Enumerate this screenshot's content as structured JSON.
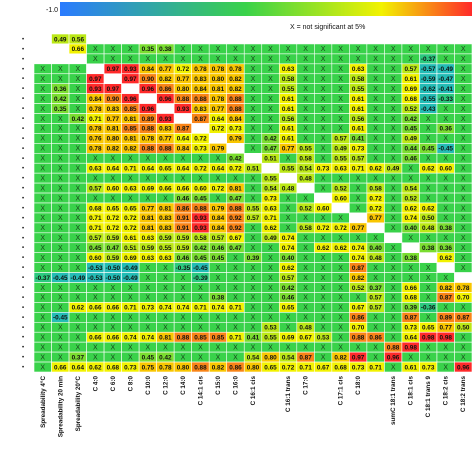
{
  "chart_data": {
    "type": "heatmap",
    "title": "",
    "color_scale": {
      "min_label": "-1.0",
      "colors": [
        "#2a7bff",
        "#39d24a",
        "#f2f200",
        "#ff2a2a"
      ]
    },
    "legend_note": "X = not significant at 5%",
    "x_tick_labels": [
      "Spreadability 4°C",
      "Spreadability 20 min",
      "Spreadability 20°C",
      "C 4 0",
      "C 6 0",
      "C 8 0",
      "C 10 0",
      "C 12 0",
      "C 14 0",
      "C 14 1 cis",
      "C 15 0",
      "C 16 0",
      "C 16 1 cis",
      "C 16 1 trans",
      "C 17 0",
      "C 17 1 cis",
      "C 18 0",
      "C 18 1 cis",
      "C 18 1 trans",
      "C 18 2 cis",
      "C 18 2 trans",
      "C 18 3",
      "C 20 0",
      "sum",
      "C 18 2 trans"
    ],
    "x_labels": [
      "Spreadability 4°C",
      "Spreadability 20 min",
      "Spreadability 20°C",
      "C 4:0",
      "C 6:0",
      "C 8:0",
      "C 10:0",
      "C 12:0",
      "C 14:0",
      "C 14:1 cis",
      "C 15:0",
      "C 16:0",
      "C 16:1 cis",
      "",
      "C 16:1 trans",
      "C 17:0",
      "",
      "C 17:1 cis",
      "C 18:0",
      "",
      "sumC 18:1 trans",
      "C 18:1 cis",
      "C 18:1 trans 9",
      "C 18:2 cis",
      "C 18:2 trans"
    ],
    "matrix": [
      [
        "",
        "0.49",
        "0.56",
        "",
        "",
        "",
        "",
        "",
        "",
        "",
        "",
        "",
        "",
        "",
        "",
        "",
        "",
        "",
        "",
        "",
        "",
        "",
        "",
        "",
        ""
      ],
      [
        "",
        "",
        "0.66",
        "X",
        "X",
        "X",
        "0.35",
        "0.38",
        "X",
        "X",
        "X",
        "X",
        "X",
        "X",
        "X",
        "X",
        "X",
        "X",
        "X",
        "X",
        "X",
        "X",
        "X",
        "X",
        "X"
      ],
      [
        "",
        "",
        "",
        "X",
        "X",
        "X",
        "X",
        "X",
        "X",
        "X",
        "X",
        "X",
        "X",
        "X",
        "X",
        "X",
        "X",
        "X",
        "X",
        "X",
        "X",
        "X",
        "-0.37",
        "X",
        "X"
      ],
      [
        "X",
        "X",
        "X",
        "",
        "0.97",
        "0.93",
        "0.84",
        "0.77",
        "0.72",
        "0.78",
        "0.78",
        "0.78",
        "X",
        "X",
        "0.63",
        "X",
        "X",
        "X",
        "0.63",
        "X",
        "X",
        "0.57",
        "-0.57",
        "-0.49",
        "X"
      ],
      [
        "X",
        "X",
        "X",
        "0.97",
        "",
        "0.97",
        "0.90",
        "0.82",
        "0.77",
        "0.83",
        "0.80",
        "0.82",
        "X",
        "X",
        "0.58",
        "X",
        "X",
        "X",
        "0.58",
        "X",
        "X",
        "0.61",
        "-0.59",
        "-0.47",
        "X"
      ],
      [
        "X",
        "0.36",
        "X",
        "0.93",
        "0.97",
        "",
        "0.96",
        "0.86",
        "0.80",
        "0.84",
        "0.81",
        "0.82",
        "X",
        "X",
        "0.55",
        "X",
        "X",
        "X",
        "0.55",
        "X",
        "X",
        "0.69",
        "-0.62",
        "-0.41",
        "X"
      ],
      [
        "X",
        "0.42",
        "X",
        "0.84",
        "0.90",
        "0.96",
        "",
        "0.96",
        "0.88",
        "0.88",
        "0.78",
        "0.88",
        "X",
        "X",
        "0.61",
        "X",
        "X",
        "X",
        "0.61",
        "X",
        "X",
        "0.68",
        "-0.55",
        "-0.33",
        "X"
      ],
      [
        "X",
        "0.35",
        "X",
        "0.78",
        "0.83",
        "0.85",
        "0.96",
        "",
        "0.93",
        "0.83",
        "0.77",
        "0.88",
        "X",
        "X",
        "0.61",
        "X",
        "X",
        "X",
        "0.61",
        "X",
        "X",
        "0.52",
        "-0.43",
        "X",
        "X"
      ],
      [
        "X",
        "X",
        "0.42",
        "0.71",
        "0.77",
        "0.81",
        "0.89",
        "0.93",
        "",
        "0.87",
        "0.64",
        "0.84",
        "X",
        "X",
        "0.56",
        "X",
        "X",
        "X",
        "0.56",
        "X",
        "X",
        "0.42",
        "X",
        "X",
        "X"
      ],
      [
        "X",
        "X",
        "X",
        "0.78",
        "0.81",
        "0.85",
        "0.88",
        "0.83",
        "0.87",
        "",
        "0.72",
        "0.73",
        "X",
        "X",
        "0.61",
        "X",
        "X",
        "X",
        "0.61",
        "X",
        "X",
        "0.45",
        "X",
        "0.36",
        "X"
      ],
      [
        "X",
        "X",
        "X",
        "0.76",
        "0.80",
        "0.81",
        "0.78",
        "0.77",
        "0.64",
        "0.72",
        "",
        "0.79",
        "X",
        "0.42",
        "0.61",
        "X",
        "X",
        "0.57",
        "0.41",
        "X",
        "X",
        "0.49",
        "X",
        "X",
        "X"
      ],
      [
        "X",
        "X",
        "X",
        "0.78",
        "0.82",
        "0.82",
        "0.88",
        "0.88",
        "0.84",
        "0.73",
        "0.79",
        "",
        "X",
        "0.47",
        "0.77",
        "0.55",
        "X",
        "0.49",
        "0.73",
        "X",
        "X",
        "0.44",
        "0.45",
        "-0.45",
        "X"
      ],
      [
        "X",
        "X",
        "X",
        "X",
        "X",
        "X",
        "X",
        "X",
        "X",
        "X",
        "X",
        "0.42",
        "",
        "0.51",
        "X",
        "0.58",
        "X",
        "0.55",
        "0.57",
        "X",
        "X",
        "0.46",
        "X",
        "X",
        "X"
      ],
      [
        "X",
        "X",
        "X",
        "0.63",
        "0.64",
        "0.71",
        "0.64",
        "0.65",
        "0.64",
        "0.72",
        "0.64",
        "0.72",
        "0.51",
        "",
        "0.55",
        "0.54",
        "0.73",
        "0.63",
        "0.71",
        "0.62",
        "0.49",
        "X",
        "0.62",
        "0.60",
        "X"
      ],
      [
        "X",
        "X",
        "X",
        "X",
        "X",
        "X",
        "X",
        "X",
        "X",
        "X",
        "X",
        "X",
        "X",
        "0.55",
        "",
        "0.48",
        "X",
        "X",
        "X",
        "X",
        "X",
        "X",
        "X",
        "X",
        "X"
      ],
      [
        "X",
        "X",
        "X",
        "0.57",
        "0.60",
        "0.63",
        "0.69",
        "0.66",
        "0.66",
        "0.60",
        "0.72",
        "0.81",
        "X",
        "0.54",
        "0.48",
        "",
        "X",
        "0.52",
        "X",
        "0.58",
        "X",
        "0.54",
        "X",
        "X",
        "X"
      ],
      [
        "X",
        "X",
        "X",
        "X",
        "X",
        "X",
        "X",
        "X",
        "0.46",
        "0.45",
        "X",
        "0.47",
        "X",
        "0.73",
        "X",
        "X",
        "",
        "0.60",
        "X",
        "0.72",
        "X",
        "0.52",
        "X",
        "X",
        "X"
      ],
      [
        "X",
        "X",
        "X",
        "0.68",
        "0.65",
        "0.65",
        "0.77",
        "0.81",
        "0.86",
        "0.88",
        "0.79",
        "0.88",
        "0.55",
        "0.63",
        "X",
        "0.52",
        "0.60",
        "",
        "X",
        "0.72",
        "X",
        "0.62",
        "0.62",
        "X",
        "X"
      ],
      [
        "X",
        "X",
        "X",
        "0.71",
        "0.72",
        "0.72",
        "0.81",
        "0.83",
        "0.91",
        "0.93",
        "0.84",
        "0.92",
        "0.57",
        "0.71",
        "X",
        "X",
        "X",
        "X",
        "",
        "0.77",
        "X",
        "0.74",
        "0.50",
        "X",
        "X"
      ],
      [
        "X",
        "X",
        "X",
        "0.71",
        "0.72",
        "0.72",
        "0.81",
        "0.83",
        "0.91",
        "0.93",
        "0.84",
        "0.92",
        "X",
        "0.62",
        "X",
        "0.58",
        "0.72",
        "0.72",
        "0.77",
        "",
        "X",
        "0.40",
        "0.48",
        "0.38",
        "X"
      ],
      [
        "X",
        "X",
        "X",
        "0.57",
        "0.59",
        "0.61",
        "0.63",
        "0.59",
        "0.59",
        "0.58",
        "0.57",
        "0.67",
        "X",
        "0.49",
        "0.74",
        "X",
        "X",
        "X",
        "X",
        "X",
        "",
        "X",
        "X",
        "X",
        "X"
      ],
      [
        "X",
        "X",
        "X",
        "0.45",
        "0.47",
        "0.51",
        "0.59",
        "0.55",
        "0.59",
        "0.42",
        "0.46",
        "0.47",
        "X",
        "X",
        "0.74",
        "X",
        "0.62",
        "0.62",
        "0.74",
        "0.40",
        "X",
        "",
        "0.38",
        "0.36",
        "X"
      ],
      [
        "X",
        "X",
        "X",
        "0.60",
        "0.59",
        "0.69",
        "0.63",
        "0.63",
        "0.46",
        "0.45",
        "0.45",
        "X",
        "0.39",
        "X",
        "0.40",
        "X",
        "X",
        "X",
        "0.74",
        "0.48",
        "X",
        "0.38",
        "",
        "0.62",
        "X"
      ],
      [
        "X",
        "X",
        "X",
        "-0.53",
        "-0.50",
        "-0.49",
        "X",
        "X",
        "-0.35",
        "-0.45",
        "X",
        "X",
        "X",
        "X",
        "0.62",
        "X",
        "X",
        "X",
        "0.87",
        "X",
        "X",
        "X",
        "X",
        "",
        "X"
      ],
      [
        "-0.37",
        "-0.45",
        "-0.49",
        "-0.53",
        "-0.50",
        "-0.49",
        "X",
        "X",
        "X",
        "-0.39",
        "X",
        "X",
        "X",
        "X",
        "0.57",
        "X",
        "X",
        "X",
        "0.82",
        "X",
        "X",
        "X",
        "X",
        "X",
        ""
      ],
      [
        "X",
        "X",
        "X",
        "X",
        "X",
        "X",
        "X",
        "X",
        "X",
        "X",
        "X",
        "X",
        "X",
        "X",
        "0.42",
        "X",
        "X",
        "X",
        "0.52",
        "0.37",
        "X",
        "0.66",
        "X",
        "0.82",
        "0.78"
      ],
      [
        "X",
        "X",
        "X",
        "X",
        "X",
        "X",
        "X",
        "X",
        "X",
        "X",
        "0.38",
        "X",
        "X",
        "X",
        "0.46",
        "X",
        "X",
        "X",
        "X",
        "0.57",
        "X",
        "0.68",
        "X",
        "0.87",
        "0.70"
      ],
      [
        "X",
        "X",
        "0.62",
        "0.66",
        "0.66",
        "0.71",
        "0.73",
        "0.74",
        "0.74",
        "0.71",
        "0.74",
        "0.71",
        "X",
        "X",
        "0.65",
        "X",
        "X",
        "X",
        "0.67",
        "0.57",
        "X",
        "0.39",
        "-0.36",
        "X",
        "X"
      ],
      [
        "X",
        "-0.45",
        "X",
        "X",
        "X",
        "X",
        "X",
        "X",
        "X",
        "X",
        "X",
        "X",
        "X",
        "X",
        "X",
        "X",
        "X",
        "X",
        "0.86",
        "X",
        "X",
        "0.87",
        "X",
        "0.89",
        "0.87"
      ],
      [
        "X",
        "X",
        "X",
        "X",
        "X",
        "X",
        "X",
        "X",
        "X",
        "X",
        "X",
        "X",
        "X",
        "0.53",
        "X",
        "0.48",
        "X",
        "X",
        "0.70",
        "X",
        "X",
        "0.73",
        "0.65",
        "0.77",
        "0.50"
      ],
      [
        "X",
        "X",
        "X",
        "0.66",
        "0.66",
        "0.74",
        "0.74",
        "0.81",
        "0.88",
        "0.85",
        "0.85",
        "0.71",
        "0.41",
        "0.55",
        "0.69",
        "0.67",
        "0.53",
        "X",
        "0.88",
        "0.86",
        "X",
        "0.64",
        "0.98",
        "0.98",
        "X"
      ],
      [
        "X",
        "X",
        "X",
        "X",
        "X",
        "X",
        "X",
        "X",
        "X",
        "X",
        "X",
        "X",
        "X",
        "X",
        "X",
        "X",
        "X",
        "X",
        "X",
        "X",
        "0.88",
        "0.98",
        "X",
        "X",
        "X"
      ],
      [
        "X",
        "X",
        "0.37",
        "X",
        "X",
        "X",
        "0.45",
        "0.42",
        "X",
        "X",
        "X",
        "X",
        "0.54",
        "0.80",
        "0.54",
        "0.87",
        "X",
        "0.82",
        "0.97",
        "X",
        "0.96",
        "X",
        "X",
        "X",
        "X"
      ],
      [
        "X",
        "0.66",
        "0.64",
        "0.62",
        "0.68",
        "0.73",
        "0.75",
        "0.78",
        "0.80",
        "0.88",
        "0.82",
        "0.86",
        "0.80",
        "0.65",
        "0.72",
        "0.71",
        "0.67",
        "0.68",
        "0.73",
        "0.71",
        "X",
        "0.61",
        "0.73",
        "X",
        "0.96"
      ]
    ]
  }
}
